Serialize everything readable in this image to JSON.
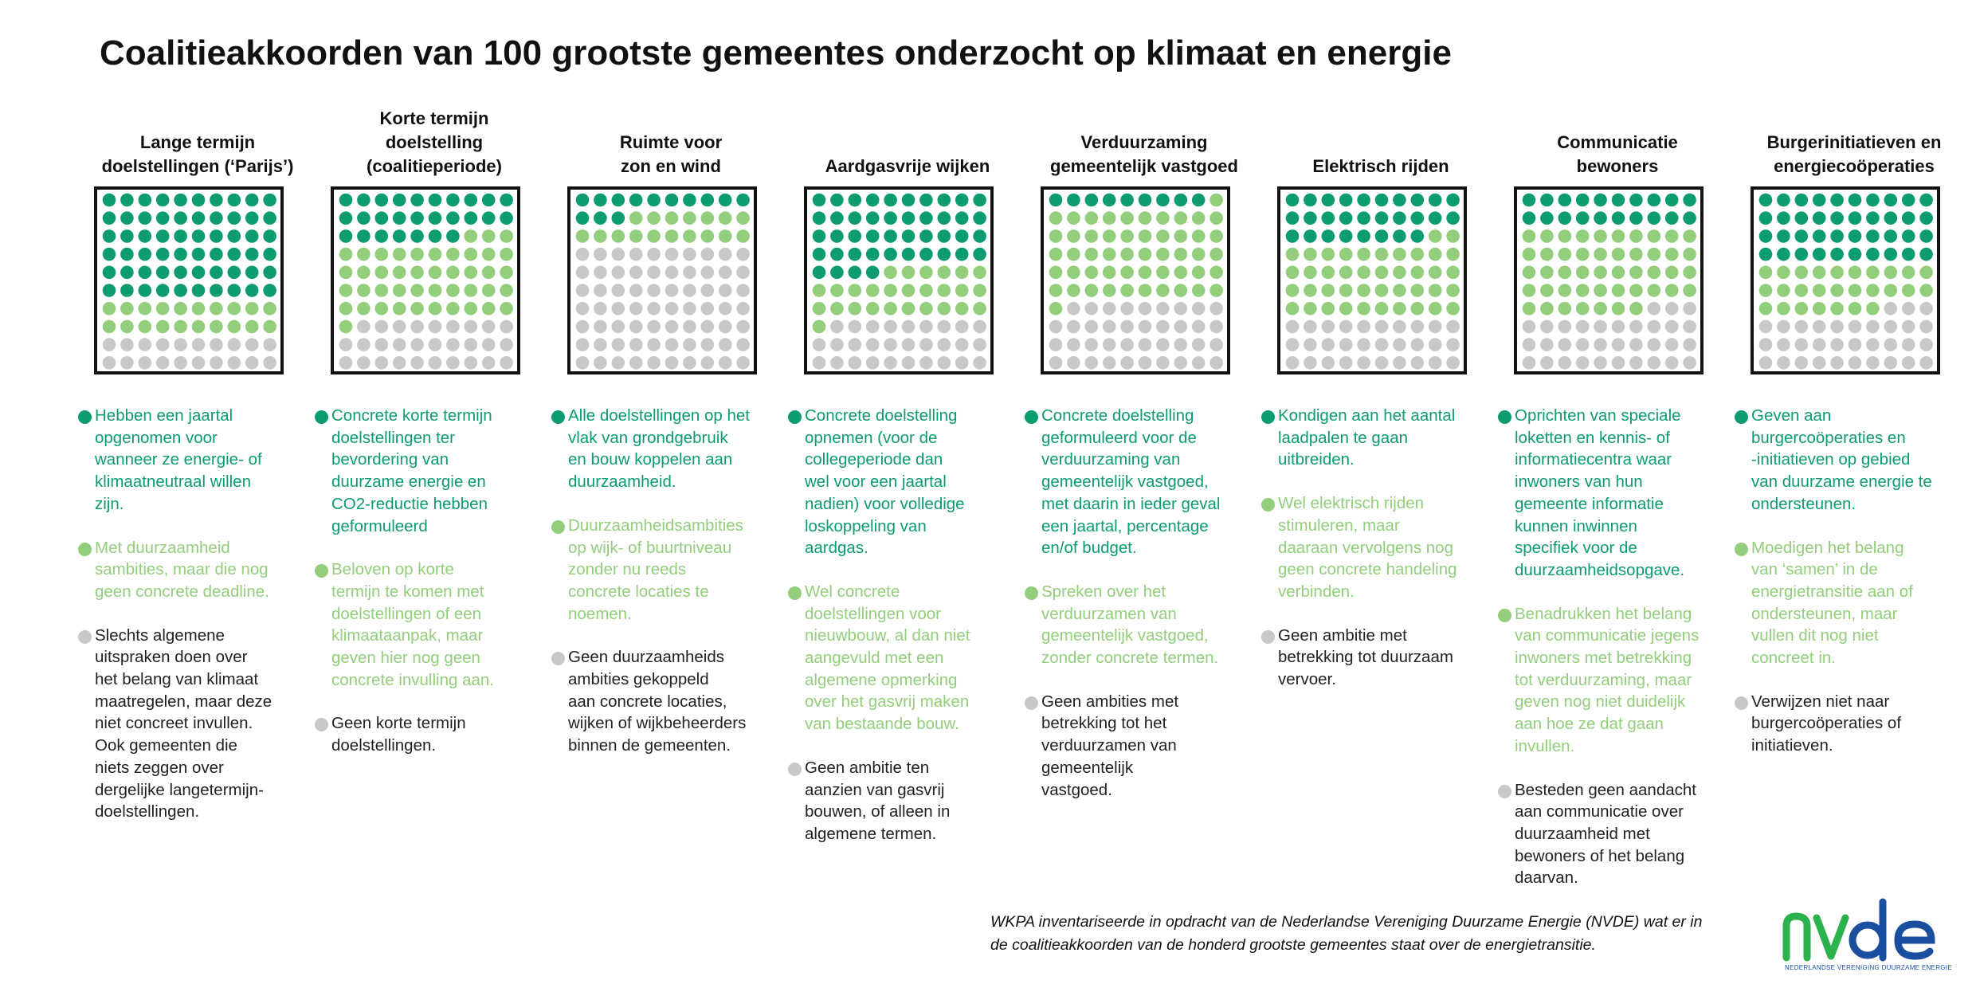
{
  "title": "Coalitieakkoorden van 100 grootste gemeentes onderzocht op klimaat en energie",
  "colors": {
    "dark_green": "#0d9b72",
    "light_green": "#92ce7b",
    "grey": "#c8c8c8"
  },
  "chart_data": {
    "type": "waffle",
    "units_per_chart": 100,
    "categories": [
      "dark_green",
      "light_green",
      "grey"
    ],
    "charts": [
      {
        "heading": "Lange termijn\ndoelstellingen (‘Parijs’)",
        "values": [
          60,
          20,
          20
        ],
        "legend": [
          "Hebben een jaartal\nopgenomen voor\nwanneer ze energie- of\nklimaatneutraal willen\nzijn.",
          "Met duurzaamheid\nsambities, maar die nog\ngeen concrete deadline.",
          "Slechts algemene\nuitspraken doen over\nhet belang van klimaat\nmaatregelen, maar deze\nniet concreet invullen.\nOok gemeenten die\nniets zeggen over\ndergelijke langetermijn-\ndoelstellingen."
        ]
      },
      {
        "heading": "Korte termijn\ndoelstelling\n(coalitieperiode)",
        "values": [
          27,
          44,
          29
        ],
        "legend": [
          "Concrete korte termijn\ndoelstellingen ter\nbevordering van\nduurzame energie en\nCO2-reductie hebben\ngeformuleerd",
          "Beloven op korte\ntermijn te komen met\ndoelstellingen of een\nklimaataanpak, maar\ngeven hier nog geen\nconcrete invulling aan.",
          "Geen korte termijn\ndoelstellingen."
        ]
      },
      {
        "heading": "Ruimte voor\nzon en wind",
        "values": [
          13,
          17,
          70
        ],
        "legend": [
          "Alle doelstellingen op het\nvlak van grondgebruik\nen bouw koppelen aan\nduurzaamheid.",
          "Duurzaamheidsambities\nop wijk- of buurtniveau\nzonder nu reeds\nconcrete locaties te\nnoemen.",
          "Geen duurzaamheids\nambities gekoppeld\naan concrete locaties,\nwijken of wijkbeheerders\nbinnen de gemeenten."
        ]
      },
      {
        "heading": "Aardgasvrije wijken",
        "values": [
          44,
          27,
          29
        ],
        "legend": [
          "Concrete doelstelling\nopnemen (voor de\ncollegeperiode dan\nwel voor een jaartal\nnadien) voor volledige\nloskoppeling van\naardgas.",
          "Wel concrete\ndoelstellingen voor\nnieuwbouw, al dan niet\naangevuld met een\nalgemene opmerking\nover het gasvrij maken\nvan bestaande bouw.",
          "Geen ambitie ten\naanzien van gasvrij\nbouwen, of alleen in\nalgemene termen."
        ]
      },
      {
        "heading": "Verduurzaming\ngemeentelijk vastgoed",
        "values": [
          9,
          52,
          39
        ],
        "legend": [
          "Concrete doelstelling\ngeformuleerd voor de\nverduurzaming van\ngemeentelijk vastgoed,\nmet daarin in ieder geval\neen jaartal, percentage\nen/of budget.",
          "Spreken over het\nverduurzamen van\ngemeentelijk vastgoed,\nzonder concrete termen.",
          "Geen ambities met\nbetrekking tot het\nverduurzamen van\ngemeentelijk\nvastgoed."
        ]
      },
      {
        "heading": "Elektrisch rijden",
        "values": [
          28,
          42,
          30
        ],
        "legend": [
          "Kondigen aan het aantal\nlaadpalen te gaan\nuitbreiden.",
          "Wel elektrisch rijden\nstimuleren, maar\ndaaraan vervolgens nog\ngeen concrete handeling\nverbinden.",
          "Geen ambitie met\nbetrekking tot duurzaam\nvervoer."
        ]
      },
      {
        "heading": "Communicatie\nbewoners",
        "values": [
          20,
          47,
          33
        ],
        "legend": [
          "Oprichten van speciale\nloketten en kennis- of\ninformatiecentra waar\ninwoners van hun\ngemeente informatie\nkunnen inwinnen\nspecifiek voor de\nduurzaamheidsopgave.",
          "Benadrukken het belang\nvan communicatie jegens\ninwoners met betrekking\ntot verduurzaming, maar\ngeven nog niet duidelijk\naan hoe ze dat gaan\ninvullen.",
          "Besteden geen aandacht\naan communicatie over\nduurzaamheid met\nbewoners of het belang\ndaarvan."
        ]
      },
      {
        "heading": "Burgerinitiatieven en\nenergiecoöperaties",
        "values": [
          40,
          27,
          33
        ],
        "legend": [
          "Geven aan\nburgercoöperaties en\n-initiatieven op gebied\nvan duurzame energie te\nondersteunen.",
          "Moedigen het belang\nvan ‘samen’ in de\nenergietransitie aan of\nondersteunen, maar\nvullen dit nog niet\nconcreet in.",
          "Verwijzen niet naar\nburgercoöperaties of\ninitiatieven."
        ]
      }
    ]
  },
  "footnote": "WKPA inventariseerde in opdracht van de Nederlandse Vereniging Duurzame Energie (NVDE) wat er in\nde coalitieakkoorden van de honderd grootste gemeentes staat over de energietransitie.",
  "logo": {
    "mark": "NVDE",
    "wordmark": "NEDERLANDSE VERENIGING DUURZAME ENERGIE"
  }
}
